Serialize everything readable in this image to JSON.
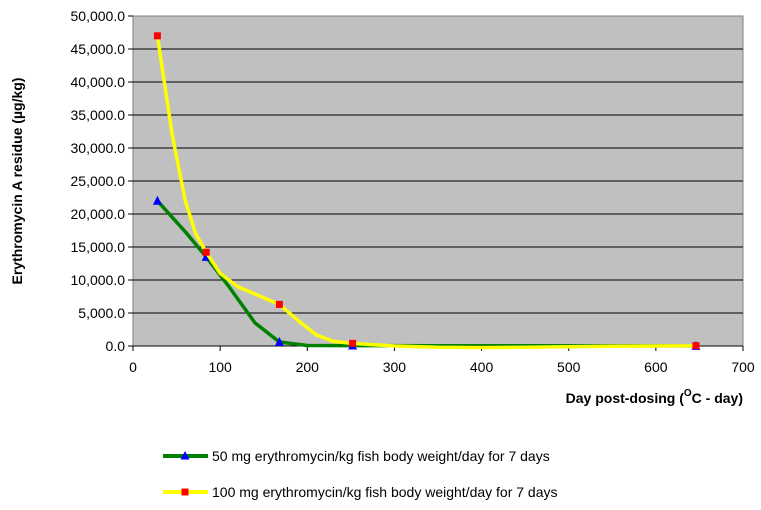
{
  "chart_data": {
    "type": "line",
    "xlabel": "Day post-dosing (",
    "xlabel_sup": "O",
    "xlabel_end": "C - day)",
    "ylabel": "Erythromycin A residue (µg/kg)",
    "xlim": [
      0,
      700
    ],
    "ylim": [
      0,
      50000
    ],
    "x_ticks": [
      "0",
      "100",
      "200",
      "300",
      "400",
      "500",
      "600",
      "700"
    ],
    "y_ticks": [
      "0.0",
      "5,000.0",
      "10,000.0",
      "15,000.0",
      "20,000.0",
      "25,000.0",
      "30,000.0",
      "35,000.0",
      "40,000.0",
      "45,000.0",
      "50,000.0"
    ],
    "grid": true,
    "plot_background": "#c0c0c0",
    "legend_position": "bottom",
    "series": [
      {
        "name": "50 mg erythromycin/kg fish body weight/day for 7 days",
        "line_color": "#008000",
        "marker": "triangle",
        "marker_color": "#0000ff",
        "x": [
          28,
          84,
          168,
          252,
          646
        ],
        "y": [
          22000,
          13500,
          600,
          80,
          20
        ],
        "curve_x": [
          28,
          60,
          84,
          110,
          140,
          168,
          200,
          252,
          350,
          450,
          550,
          646
        ],
        "curve_y": [
          22000,
          17300,
          13500,
          9000,
          3500,
          600,
          80,
          60,
          40,
          25,
          20,
          20
        ]
      },
      {
        "name": "100 mg erythromycin/kg fish body weight/day for 7 days",
        "line_color": "#ffff00",
        "marker": "square",
        "marker_color": "#ff0000",
        "x": [
          28,
          84,
          168,
          252,
          646
        ],
        "y": [
          47000,
          14200,
          6300,
          400,
          50
        ],
        "curve_x": [
          28,
          45,
          60,
          72,
          84,
          100,
          120,
          150,
          168,
          190,
          210,
          230,
          252,
          300,
          350,
          400,
          450,
          550,
          646
        ],
        "curve_y": [
          47000,
          32000,
          22000,
          17000,
          14200,
          11000,
          9000,
          7300,
          6300,
          3800,
          1700,
          700,
          400,
          0,
          -200,
          -250,
          -200,
          -50,
          50
        ]
      }
    ]
  }
}
